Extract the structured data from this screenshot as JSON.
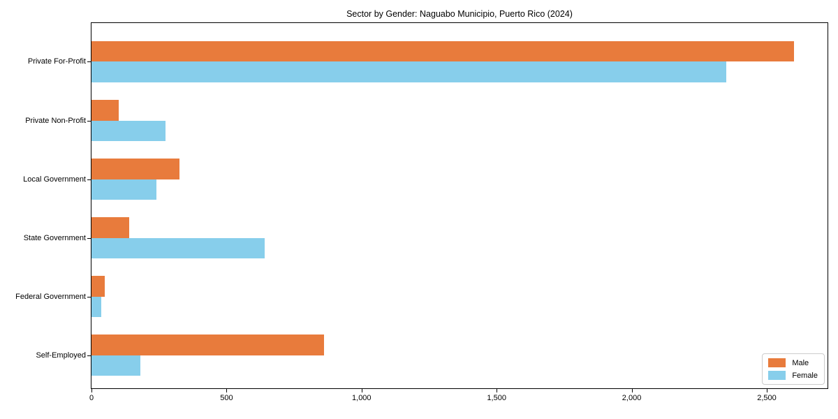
{
  "chart_data": {
    "type": "bar",
    "orientation": "horizontal",
    "title": "Sector by Gender: Naguabo Municipio, Puerto Rico (2024)",
    "categories": [
      "Private For-Profit",
      "Private Non-Profit",
      "Local Government",
      "State Government",
      "Federal Government",
      "Self-Employed"
    ],
    "series": [
      {
        "name": "Male",
        "color": "#E87B3C",
        "values": [
          2600,
          100,
          325,
          140,
          50,
          860
        ]
      },
      {
        "name": "Female",
        "color": "#87CEEB",
        "values": [
          2350,
          275,
          240,
          640,
          35,
          180
        ]
      }
    ],
    "xlabel": "",
    "ylabel": "",
    "xlim": [
      0,
      2725
    ],
    "ylim": [
      -0.56,
      5.66
    ],
    "xticks": [
      0,
      500,
      1000,
      1500,
      2000,
      2500
    ],
    "xtick_labels": [
      "0",
      "500",
      "1,000",
      "1,500",
      "2,000",
      "2,500"
    ],
    "bar_height_units": 0.35,
    "grid": false,
    "legend_position": "lower right",
    "spine_color": "#000000",
    "background_color": "#ffffff"
  }
}
